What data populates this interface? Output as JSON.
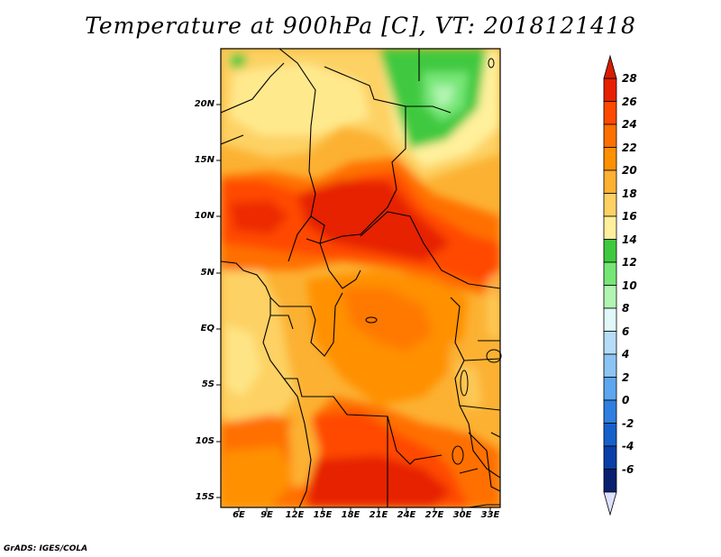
{
  "title": "Temperature at 900hPa [C], VT: 2018121418",
  "credit": "GrADS: IGES/COLA",
  "map": {
    "lat_labels": [
      "20N",
      "15N",
      "10N",
      "5N",
      "EQ",
      "5S",
      "10S",
      "15S"
    ],
    "lon_labels": [
      "6E",
      "9E",
      "12E",
      "15E",
      "18E",
      "21E",
      "24E",
      "27E",
      "30E",
      "33E"
    ]
  },
  "colorbar": {
    "labels": [
      "28",
      "26",
      "24",
      "22",
      "20",
      "18",
      "16",
      "14",
      "12",
      "10",
      "8",
      "6",
      "4",
      "2",
      "0",
      "-2",
      "-4",
      "-6"
    ],
    "colors": [
      "#e62000",
      "#ff4a00",
      "#ff6f00",
      "#ff9000",
      "#fcb132",
      "#fdd163",
      "#fff09b",
      "#3fc93f",
      "#76e676",
      "#b2f4b2",
      "#e0f8f8",
      "#b6dcf8",
      "#8cc4f4",
      "#5ea6f0",
      "#2f7fe0",
      "#1660cc",
      "#0a3ea8",
      "#08206e"
    ],
    "arrow_high_color": "#d81c00",
    "arrow_low_color": "#dde0ff"
  }
}
